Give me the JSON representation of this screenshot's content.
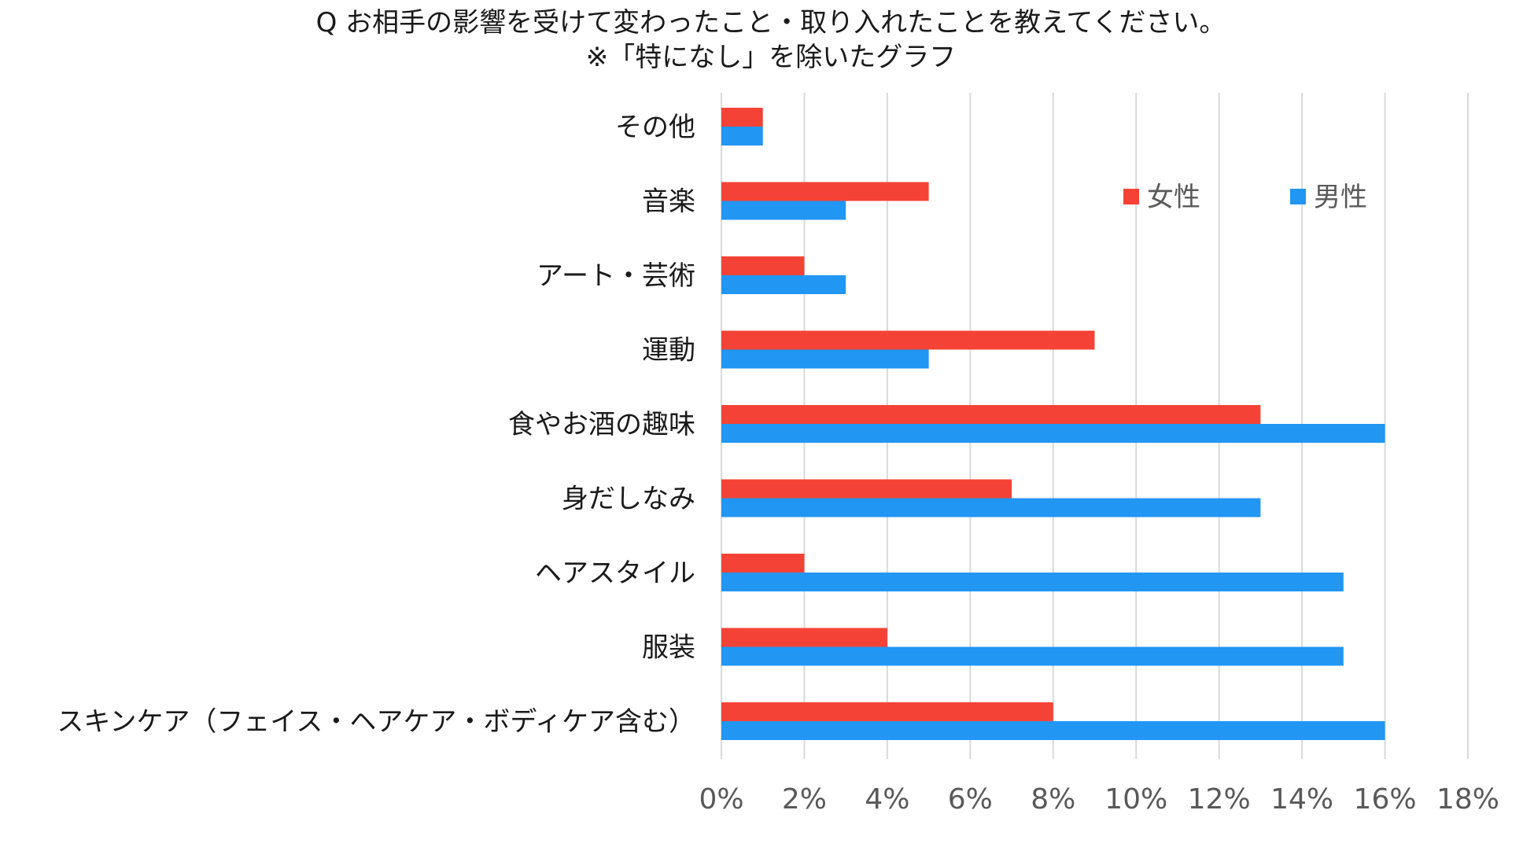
{
  "chart_data": {
    "type": "bar",
    "orientation": "horizontal",
    "title": "Q お相手の影響を受けて変わったこと・取り入れたことを教えてください。",
    "subtitle": "※「特になし」を除いたグラフ",
    "categories": [
      "その他",
      "音楽",
      "アート・芸術",
      "運動",
      "食やお酒の趣味",
      "身だしなみ",
      "ヘアスタイル",
      "服装",
      "スキンケア（フェイス・ヘアケア・ボディケア含む）"
    ],
    "series": [
      {
        "name": "女性",
        "color": "#f44336",
        "values": [
          1,
          5,
          2,
          9,
          13,
          7,
          2,
          4,
          8
        ]
      },
      {
        "name": "男性",
        "color": "#2196f3",
        "values": [
          1,
          3,
          3,
          5,
          16,
          13,
          15,
          15,
          16
        ]
      }
    ],
    "xlim": [
      0,
      18
    ],
    "xticks": [
      0,
      2,
      4,
      6,
      8,
      10,
      12,
      14,
      16,
      18
    ],
    "tick_suffix": "%",
    "xlabel": "",
    "ylabel": "",
    "grid": true,
    "legend_position": "top-right"
  }
}
